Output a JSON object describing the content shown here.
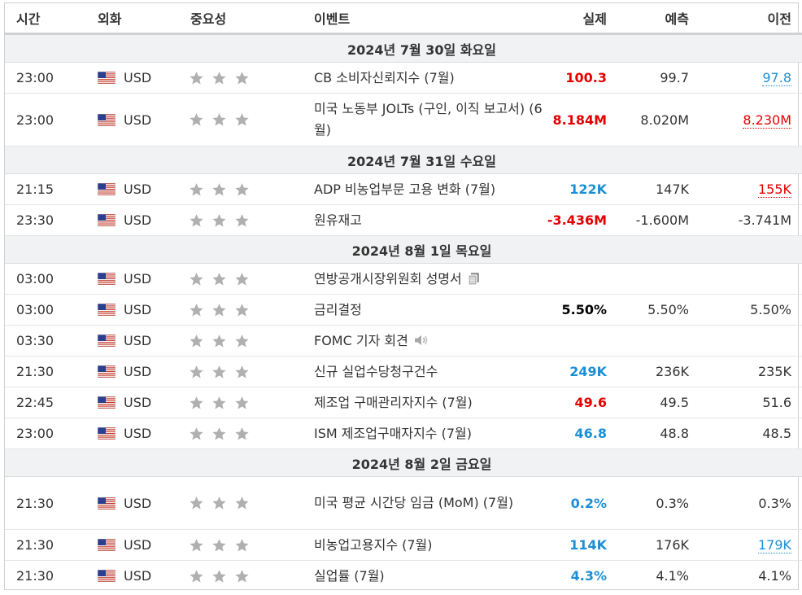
{
  "headers": {
    "time": "시간",
    "currency": "외화",
    "importance": "중요성",
    "event": "이벤트",
    "actual": "실제",
    "forecast": "예측",
    "previous": "이전"
  },
  "colors": {
    "positive": "#1b8fd6",
    "negative": "#e50000",
    "star": "#b0b0b0"
  },
  "icons": {
    "flag": "us-flag-icon",
    "star": "star-icon",
    "speech": "document-icon",
    "speaker": "speaker-icon"
  },
  "dates": [
    "2024년 7월 30일 화요일",
    "2024년 7월 31일 수요일",
    "2024년 8월 1일 목요일",
    "2024년 8월 2일 금요일"
  ],
  "events": [
    {
      "time": "23:00",
      "currency": "USD",
      "importance": 3,
      "name": "CB 소비자신뢰지수 (7월)",
      "actual": "100.3",
      "forecast": "99.7",
      "previous": "97.8"
    },
    {
      "time": "23:00",
      "currency": "USD",
      "importance": 3,
      "name": "미국 노동부 JOLTs (구인, 이직 보고서) (6월)",
      "actual": "8.184M",
      "forecast": "8.020M",
      "previous": "8.230M"
    },
    {
      "time": "21:15",
      "currency": "USD",
      "importance": 3,
      "name": "ADP 비농업부문 고용 변화 (7월)",
      "actual": "122K",
      "forecast": "147K",
      "previous": "155K"
    },
    {
      "time": "23:30",
      "currency": "USD",
      "importance": 3,
      "name": "원유재고",
      "actual": "-3.436M",
      "forecast": "-1.600M",
      "previous": "-3.741M"
    },
    {
      "time": "03:00",
      "currency": "USD",
      "importance": 3,
      "name": "연방공개시장위원회 성명서",
      "actual": "",
      "forecast": "",
      "previous": ""
    },
    {
      "time": "03:00",
      "currency": "USD",
      "importance": 3,
      "name": "금리결정",
      "actual": "5.50%",
      "forecast": "5.50%",
      "previous": "5.50%"
    },
    {
      "time": "03:30",
      "currency": "USD",
      "importance": 3,
      "name": "FOMC 기자 회견",
      "actual": "",
      "forecast": "",
      "previous": ""
    },
    {
      "time": "21:30",
      "currency": "USD",
      "importance": 3,
      "name": "신규 실업수당청구건수",
      "actual": "249K",
      "forecast": "236K",
      "previous": "235K"
    },
    {
      "time": "22:45",
      "currency": "USD",
      "importance": 3,
      "name": "제조업 구매관리자지수 (7월)",
      "actual": "49.6",
      "forecast": "49.5",
      "previous": "51.6"
    },
    {
      "time": "23:00",
      "currency": "USD",
      "importance": 3,
      "name": "ISM 제조업구매자지수 (7월)",
      "actual": "46.8",
      "forecast": "48.8",
      "previous": "48.5"
    },
    {
      "time": "21:30",
      "currency": "USD",
      "importance": 3,
      "name": "미국 평균 시간당 임금 (MoM) (7월)",
      "actual": "0.2%",
      "forecast": "0.3%",
      "previous": "0.3%"
    },
    {
      "time": "21:30",
      "currency": "USD",
      "importance": 3,
      "name": "비농업고용지수 (7월)",
      "actual": "114K",
      "forecast": "176K",
      "previous": "179K"
    },
    {
      "time": "21:30",
      "currency": "USD",
      "importance": 3,
      "name": "실업률 (7월)",
      "actual": "4.3%",
      "forecast": "4.1%",
      "previous": "4.1%"
    }
  ]
}
